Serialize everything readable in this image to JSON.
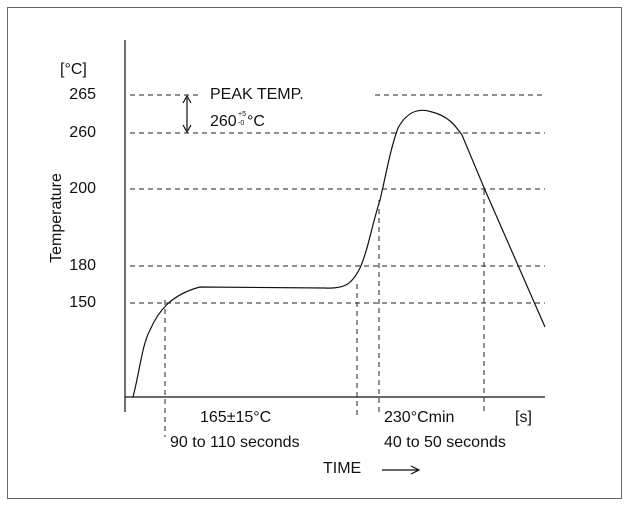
{
  "y_axis": {
    "unit": "[°C]",
    "label": "Temperature",
    "ticks": [
      "265",
      "260",
      "200",
      "180",
      "150"
    ]
  },
  "peak": {
    "title": "PEAK TEMP.",
    "value": "260",
    "plus": "+5",
    "minus": "-0",
    "unit": "°C"
  },
  "preheat": {
    "temp": "165±15°C",
    "duration": "90 to 110 seconds"
  },
  "reflow": {
    "temp": "230°Cmin",
    "duration": "40 to 50 seconds"
  },
  "x_axis": {
    "unit": "[s]",
    "label": "TIME"
  }
}
